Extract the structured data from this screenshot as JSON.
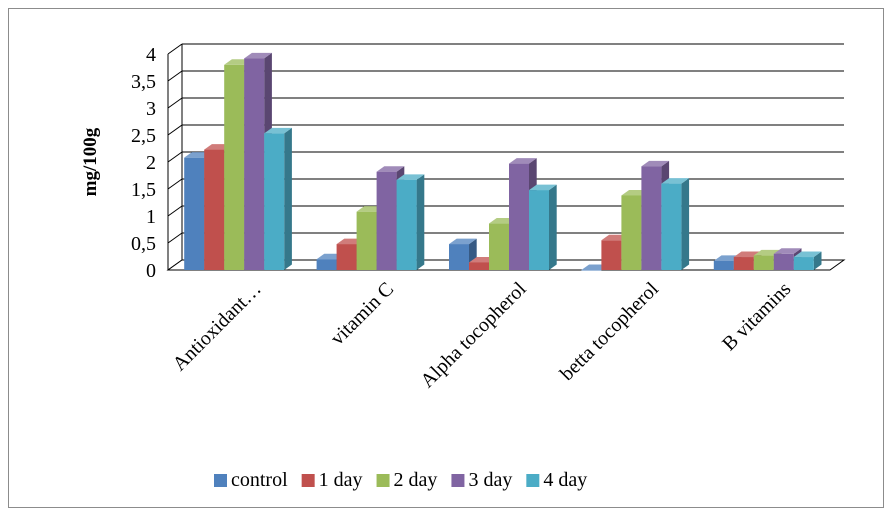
{
  "chart_data": {
    "type": "bar",
    "title": "",
    "xlabel": "",
    "ylabel": "mg/100g",
    "ylim": [
      0,
      4
    ],
    "yticks": [
      "0",
      "0,5",
      "1",
      "1,5",
      "2",
      "2,5",
      "3",
      "3,5",
      "4"
    ],
    "grid": true,
    "legend_position": "bottom",
    "categories": [
      "Antioxidant…",
      "vitamin C",
      "Alpha tocopherol",
      "betta tocopherol",
      "B vitamins"
    ],
    "series": [
      {
        "name": "control",
        "color": "#4F81BD",
        "values": [
          2.08,
          0.2,
          0.48,
          0.0,
          0.17
        ]
      },
      {
        "name": "1 day",
        "color": "#C0504D",
        "values": [
          2.23,
          0.48,
          0.14,
          0.55,
          0.24
        ]
      },
      {
        "name": "2 day",
        "color": "#9BBB59",
        "values": [
          3.8,
          1.08,
          0.86,
          1.38,
          0.27
        ]
      },
      {
        "name": "3 day",
        "color": "#8064A2",
        "values": [
          3.92,
          1.82,
          1.97,
          1.92,
          0.3
        ]
      },
      {
        "name": "4 day",
        "color": "#4BACC6",
        "values": [
          2.53,
          1.67,
          1.48,
          1.6,
          0.24
        ]
      }
    ]
  }
}
